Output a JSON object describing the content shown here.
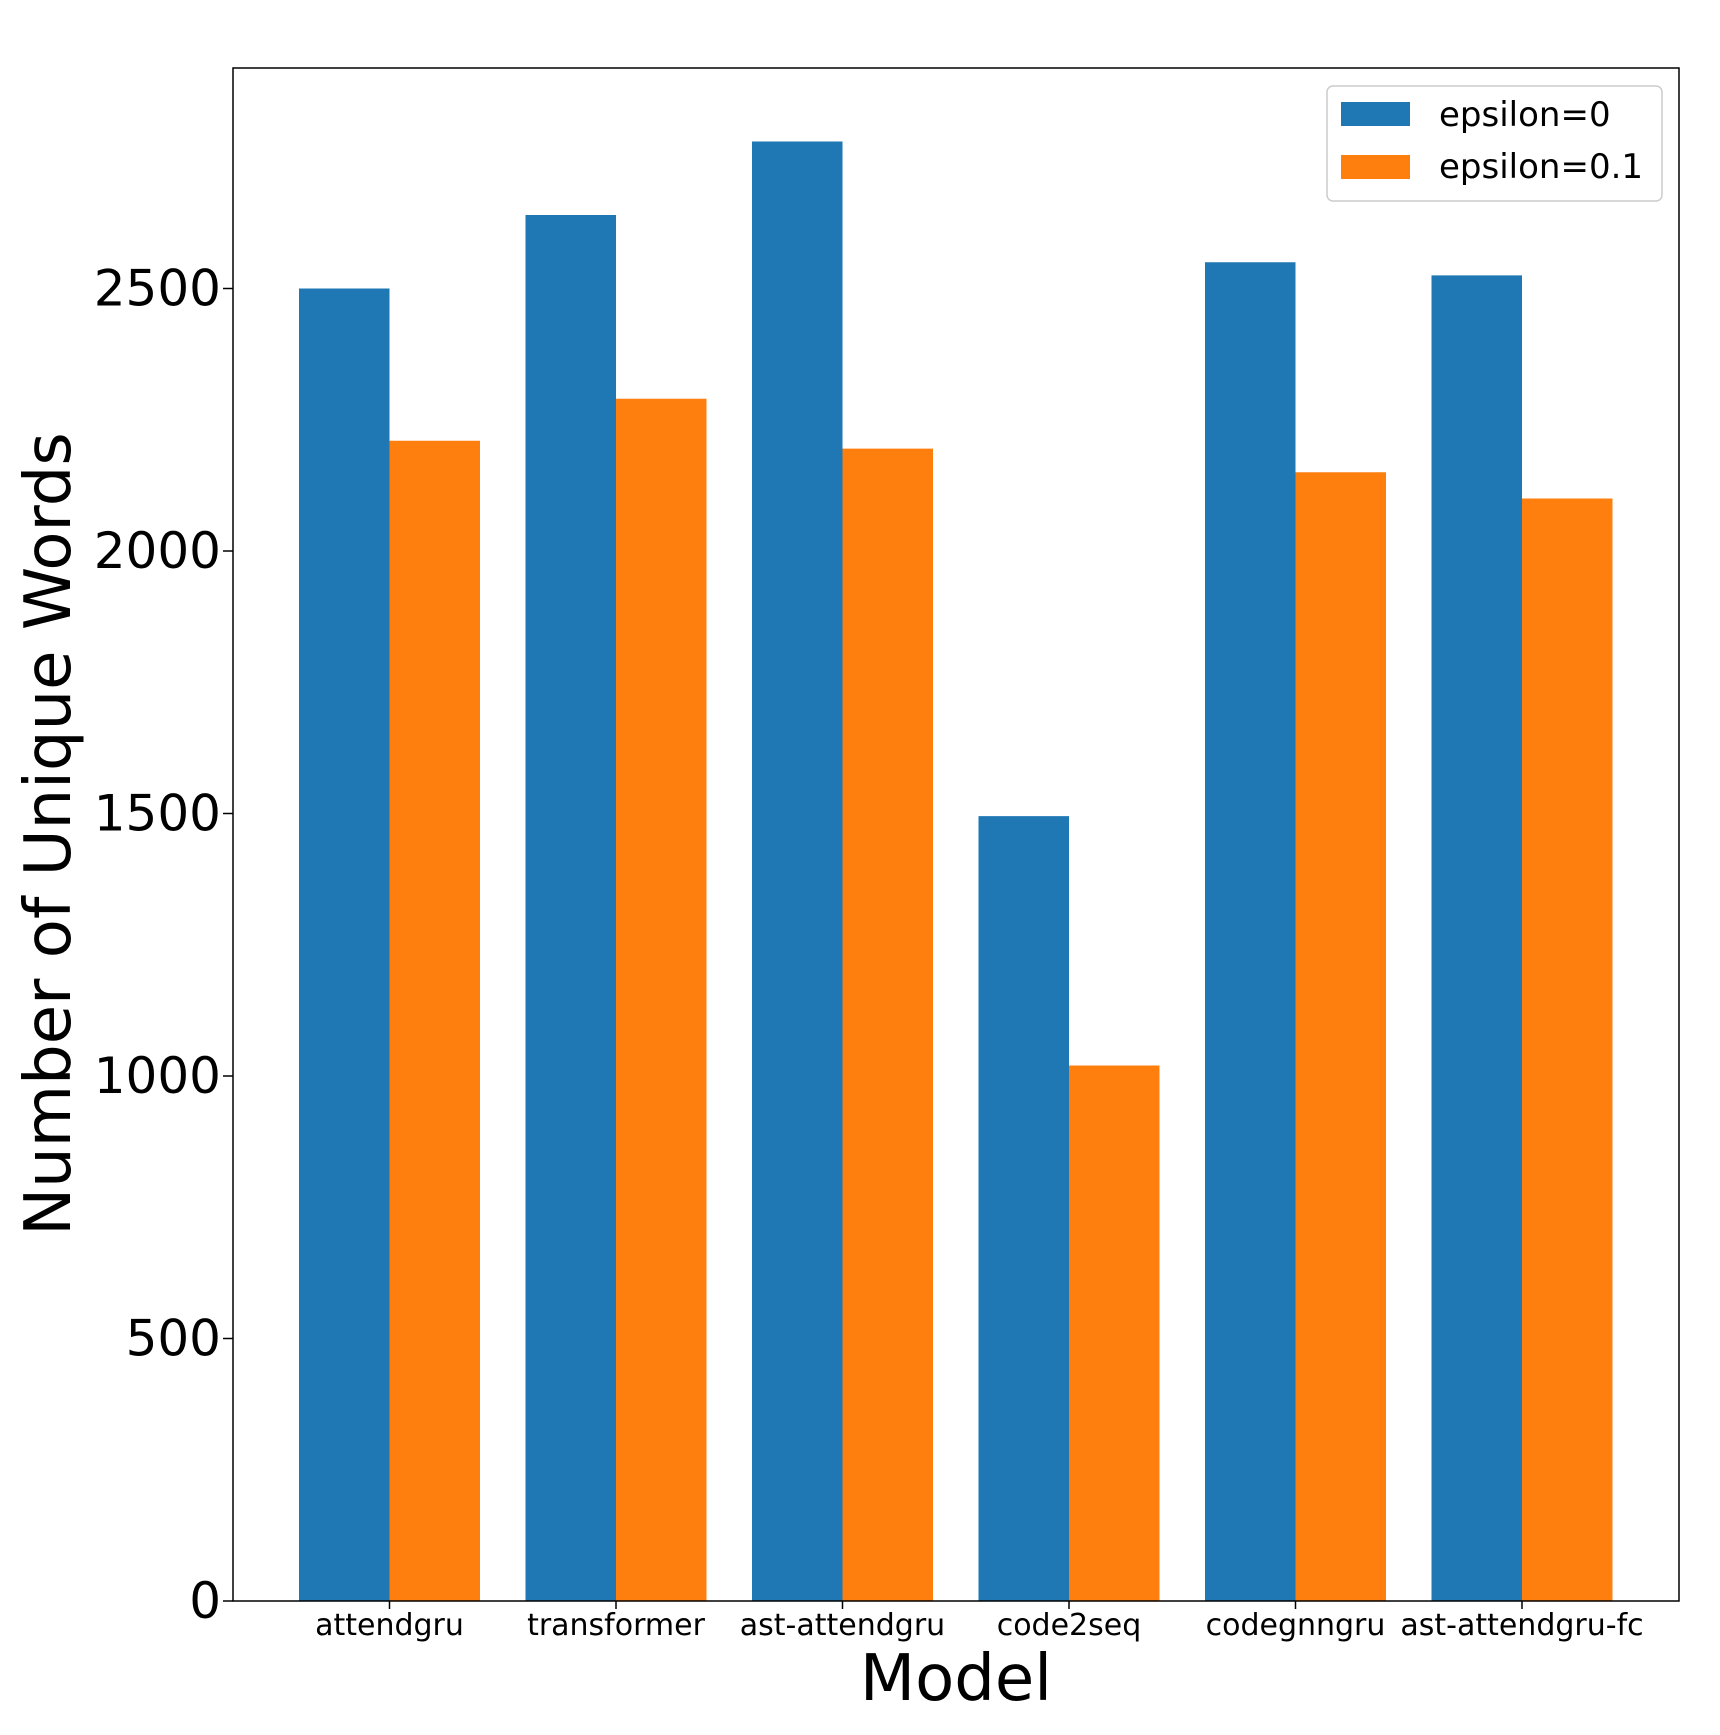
{
  "chart_data": {
    "type": "bar",
    "title": "",
    "xlabel": "Model",
    "ylabel": "Number of Unique Words",
    "categories": [
      "attendgru",
      "transformer",
      "ast-attendgru",
      "code2seq",
      "codegnngru",
      "ast-attendgru-fc"
    ],
    "series": [
      {
        "name": "epsilon=0",
        "color": "#1f77b4",
        "values": [
          2500,
          2640,
          2780,
          1495,
          2550,
          2525
        ]
      },
      {
        "name": "epsilon=0.1",
        "color": "#ff7f0e",
        "values": [
          2210,
          2290,
          2195,
          1020,
          2150,
          2100
        ]
      }
    ],
    "ylim": [
      0,
      2920
    ],
    "yticks": [
      0,
      500,
      1000,
      1500,
      2000,
      2500
    ],
    "legend_position": "top-right",
    "grid": false
  }
}
